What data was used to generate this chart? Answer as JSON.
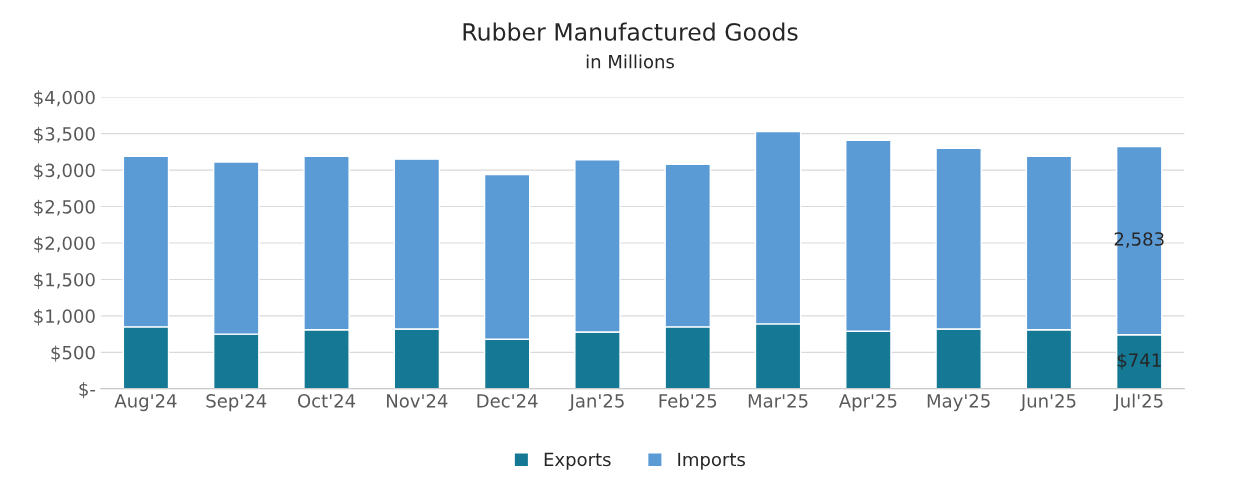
{
  "chart_data": {
    "type": "bar",
    "title": "Rubber Manufactured Goods",
    "subtitle": "in Millions",
    "stacked": true,
    "categories": [
      "Aug'24",
      "Sep'24",
      "Oct'24",
      "Nov'24",
      "Dec'24",
      "Jan'25",
      "Feb'25",
      "Mar'25",
      "Apr'25",
      "May'25",
      "Jun'25",
      "Jul'25"
    ],
    "series": [
      {
        "name": "Exports",
        "color": "#157894",
        "values": [
          850,
          750,
          810,
          820,
          680,
          780,
          850,
          890,
          790,
          820,
          810,
          741
        ],
        "value_labels": [
          null,
          null,
          null,
          null,
          null,
          null,
          null,
          null,
          null,
          null,
          null,
          "$741"
        ]
      },
      {
        "name": "Imports",
        "color": "#5b9bd5",
        "values": [
          2340,
          2360,
          2380,
          2330,
          2260,
          2360,
          2230,
          2640,
          2620,
          2480,
          2380,
          2583
        ],
        "value_labels": [
          null,
          null,
          null,
          null,
          null,
          null,
          null,
          null,
          null,
          null,
          null,
          "2,583"
        ]
      }
    ],
    "ylim": [
      0,
      4000
    ],
    "yticks": [
      {
        "value": 0,
        "label": "$-"
      },
      {
        "value": 500,
        "label": "$500"
      },
      {
        "value": 1000,
        "label": "$1,000"
      },
      {
        "value": 1500,
        "label": "$1,500"
      },
      {
        "value": 2000,
        "label": "$2,000"
      },
      {
        "value": 2500,
        "label": "$2,500"
      },
      {
        "value": 3000,
        "label": "$3,000"
      },
      {
        "value": 3500,
        "label": "$3,500"
      },
      {
        "value": 4000,
        "label": "$4,000"
      }
    ],
    "grid": "y",
    "legend": "bottom"
  }
}
